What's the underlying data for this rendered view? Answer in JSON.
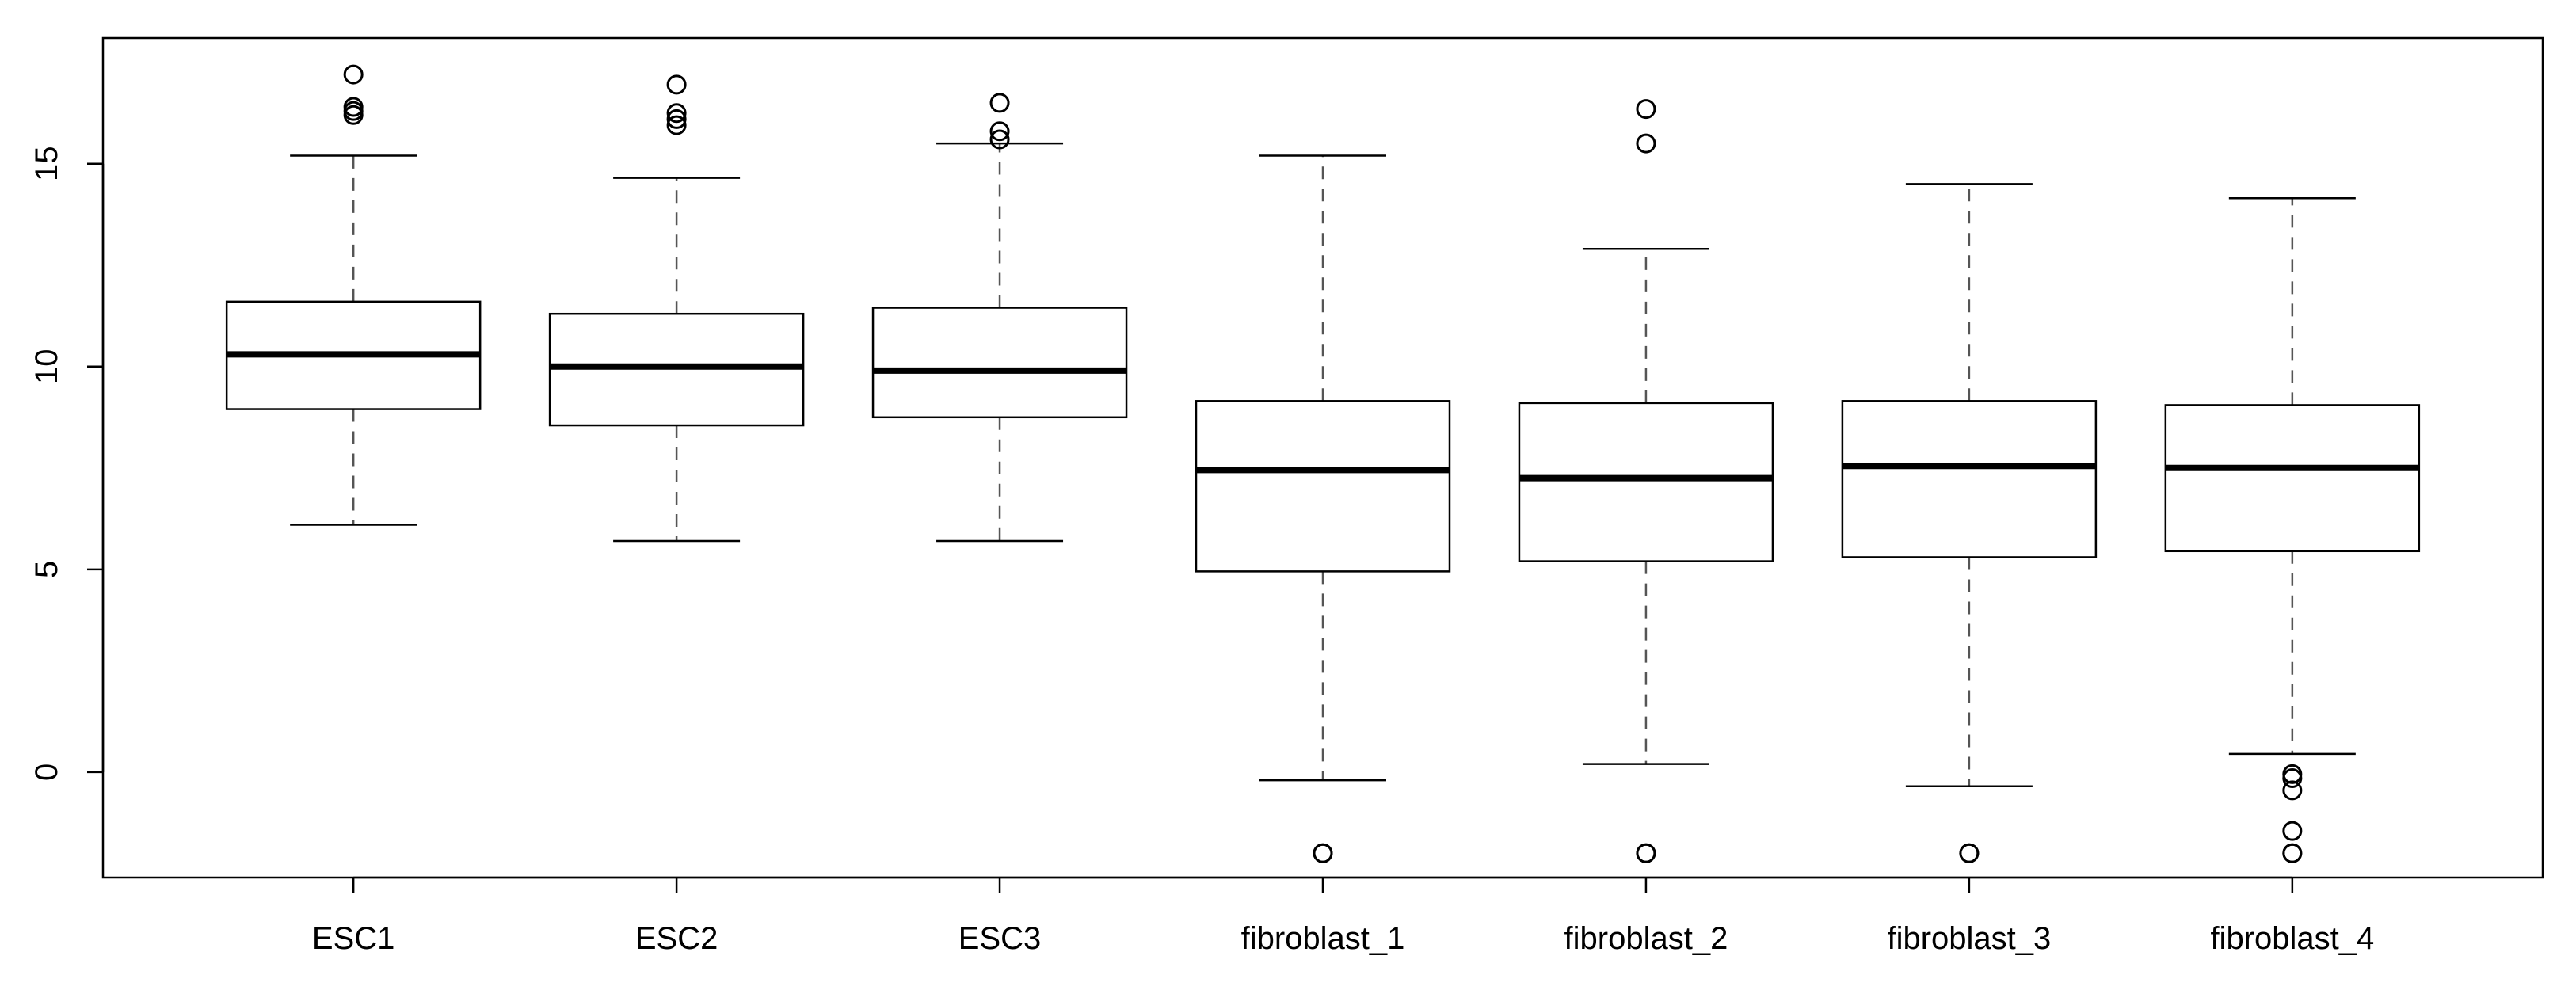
{
  "chart_data": {
    "type": "boxplot",
    "title": "",
    "xlabel": "",
    "ylabel": "",
    "ylim": [
      -2.6,
      18.1
    ],
    "yticks": [
      0,
      5,
      10,
      15
    ],
    "ytick_labels": [
      "0",
      "5",
      "10",
      "15"
    ],
    "grid": false,
    "legend": "none",
    "colors": {
      "box_fill": "#ffffff",
      "stroke": "#000000",
      "whisker": "#555555"
    },
    "categories": [
      "ESC1",
      "ESC2",
      "ESC3",
      "fibroblast_1",
      "fibroblast_2",
      "fibroblast_3",
      "fibroblast_4"
    ],
    "boxes": [
      {
        "label": "ESC1",
        "whisker_low": 6.1,
        "q1": 8.95,
        "median": 10.3,
        "q3": 11.6,
        "whisker_high": 15.2,
        "outliers": [
          16.2,
          16.3,
          16.4,
          17.2
        ]
      },
      {
        "label": "ESC2",
        "whisker_low": 5.7,
        "q1": 8.55,
        "median": 10.0,
        "q3": 11.3,
        "whisker_high": 14.65,
        "outliers": [
          15.95,
          16.1,
          16.25,
          16.95
        ]
      },
      {
        "label": "ESC3",
        "whisker_low": 5.7,
        "q1": 8.75,
        "median": 9.9,
        "q3": 11.45,
        "whisker_high": 15.5,
        "outliers": [
          15.6,
          15.8,
          16.5
        ]
      },
      {
        "label": "fibroblast_1",
        "whisker_low": -0.2,
        "q1": 4.95,
        "median": 7.45,
        "q3": 9.15,
        "whisker_high": 15.2,
        "outliers": [
          -2.0,
          -2.0
        ]
      },
      {
        "label": "fibroblast_2",
        "whisker_low": 0.2,
        "q1": 5.2,
        "median": 7.25,
        "q3": 9.1,
        "whisker_high": 12.9,
        "outliers": [
          -2.0,
          -2.0,
          15.5,
          16.35
        ]
      },
      {
        "label": "fibroblast_3",
        "whisker_low": -0.35,
        "q1": 5.3,
        "median": 7.55,
        "q3": 9.15,
        "whisker_high": 14.5,
        "outliers": [
          -2.0,
          -2.0
        ]
      },
      {
        "label": "fibroblast_4",
        "whisker_low": 0.45,
        "q1": 5.45,
        "median": 7.5,
        "q3": 9.05,
        "whisker_high": 14.15,
        "outliers": [
          -0.05,
          -0.15,
          -0.45,
          -1.45,
          -2.0,
          -2.0
        ]
      }
    ]
  }
}
